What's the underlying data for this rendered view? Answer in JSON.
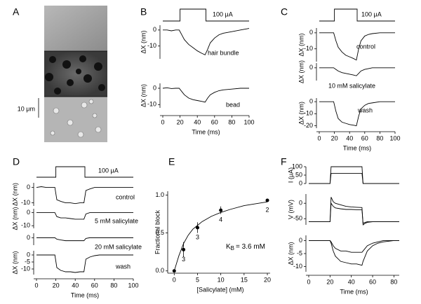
{
  "chart_data": [
    {
      "type": "image",
      "label": "A",
      "scale_bar": "10 μm"
    },
    {
      "type": "line",
      "label": "B",
      "stimulus": {
        "label": "100 μA",
        "start": 20,
        "end": 50
      },
      "ylabel": "ΔX (nm)",
      "annotation": "hair bundle",
      "xlim": [
        0,
        100
      ],
      "ylim": [
        -18,
        3
      ],
      "yticks": [
        0,
        -10
      ],
      "x": [
        0,
        5,
        10,
        15,
        19,
        22,
        25,
        30,
        35,
        40,
        45,
        49,
        52,
        55,
        60,
        65,
        70,
        80,
        90,
        100
      ],
      "series": [
        {
          "color": "#000000",
          "values": [
            0,
            0,
            -0.5,
            0,
            0,
            -3,
            -6,
            -9,
            -11,
            -13,
            -14.5,
            -15.5,
            -12,
            -8,
            -5,
            -3,
            -2,
            -1,
            0,
            1
          ]
        }
      ]
    },
    {
      "type": "line",
      "ylabel": "ΔX (nm)",
      "annotation": "bead",
      "xlabel": "Time (ms)",
      "xlim": [
        0,
        100
      ],
      "ylim": [
        -12,
        3
      ],
      "yticks": [
        0,
        -10
      ],
      "xticks": [
        0,
        20,
        40,
        60,
        80,
        100
      ],
      "x": [
        0,
        5,
        10,
        15,
        19,
        22,
        25,
        30,
        35,
        40,
        45,
        49,
        52,
        55,
        60,
        65,
        70,
        80,
        90,
        100
      ],
      "series": [
        {
          "color": "#000000",
          "values": [
            0,
            0.3,
            -0.2,
            0,
            0,
            -2,
            -4,
            -6,
            -7,
            -7.5,
            -8,
            -8.5,
            -6,
            -4,
            -2.5,
            -1.5,
            -1,
            -0.5,
            0,
            0
          ]
        }
      ]
    },
    {
      "type": "line",
      "label": "C",
      "stimulus": {
        "label": "100 μA",
        "start": 20,
        "end": 50
      },
      "ylabel": "ΔX (nm)",
      "annotation": "control",
      "xlim": [
        0,
        100
      ],
      "ylim": [
        -18,
        3
      ],
      "yticks": [
        0,
        -10
      ],
      "x": [
        0,
        5,
        10,
        15,
        19,
        22,
        25,
        30,
        35,
        40,
        45,
        49,
        52,
        55,
        60,
        65,
        70,
        80,
        90,
        100
      ],
      "series": [
        {
          "color": "#000000",
          "values": [
            0,
            0,
            0,
            0,
            0,
            -5,
            -9,
            -12,
            -14,
            -15,
            -16,
            -17,
            -10,
            -5,
            -2,
            -1,
            -0.5,
            0,
            0,
            0
          ]
        }
      ]
    },
    {
      "type": "line",
      "ylabel": "ΔX (nm)",
      "annotation": "10 mM salicylate",
      "xlim": [
        0,
        100
      ],
      "ylim": [
        -8,
        3
      ],
      "yticks": [
        0
      ],
      "x": [
        0,
        5,
        10,
        15,
        19,
        22,
        25,
        30,
        35,
        40,
        45,
        49,
        52,
        55,
        60,
        65,
        70,
        80,
        90,
        100
      ],
      "series": [
        {
          "color": "#000000",
          "values": [
            0,
            0,
            0,
            0,
            0,
            -1,
            -2,
            -3,
            -3.5,
            -4,
            -4.5,
            -5,
            -3.5,
            -2,
            -1,
            -0.5,
            0,
            0,
            0,
            0
          ]
        }
      ]
    },
    {
      "type": "line",
      "ylabel": "ΔX (nm)",
      "annotation": "wash",
      "xlabel": "Time (ms)",
      "xlim": [
        0,
        100
      ],
      "ylim": [
        -22,
        3
      ],
      "yticks": [
        0,
        -10,
        -20
      ],
      "xticks": [
        0,
        20,
        40,
        60,
        80,
        100
      ],
      "x": [
        0,
        5,
        10,
        15,
        19,
        22,
        25,
        30,
        35,
        40,
        45,
        49,
        52,
        55,
        60,
        65,
        70,
        80,
        90,
        100
      ],
      "series": [
        {
          "color": "#000000",
          "values": [
            0,
            0,
            0,
            0,
            0,
            -8,
            -14,
            -17,
            -18,
            -19,
            -19.5,
            -20,
            -12,
            -6,
            -3,
            -1.5,
            -1,
            0,
            0,
            0
          ]
        }
      ]
    },
    {
      "type": "line",
      "label": "D",
      "stimulus": {
        "label": "100 μA",
        "start": 20,
        "end": 50
      },
      "ylabel": "ΔX (nm)",
      "annotation": "control",
      "xlim": [
        0,
        100
      ],
      "ylim": [
        -12,
        3
      ],
      "yticks": [
        0,
        -10
      ],
      "x": [
        0,
        5,
        10,
        15,
        19,
        21,
        25,
        30,
        35,
        40,
        45,
        49,
        51,
        55,
        60,
        65,
        70,
        80,
        90,
        100
      ],
      "series": [
        {
          "color": "#000000",
          "values": [
            0,
            0.5,
            0,
            0,
            0,
            -8,
            -9,
            -10,
            -10,
            -10.5,
            -10,
            -10,
            -2,
            -1,
            0,
            0,
            0,
            0,
            0,
            0
          ]
        }
      ]
    },
    {
      "type": "line",
      "ylabel": "ΔX (nm)",
      "annotation": "5 mM salicylate",
      "xlim": [
        0,
        100
      ],
      "ylim": [
        -12,
        3
      ],
      "yticks": [
        0,
        -10
      ],
      "x": [
        0,
        5,
        10,
        15,
        19,
        21,
        25,
        30,
        35,
        40,
        45,
        49,
        51,
        55,
        60,
        65,
        70,
        80,
        90,
        100
      ],
      "series": [
        {
          "color": "#000000",
          "values": [
            0,
            0,
            0,
            0,
            0,
            -3,
            -4,
            -4,
            -4.5,
            -5,
            -5,
            -5,
            -1,
            0,
            0,
            0,
            0,
            0,
            0,
            0
          ]
        }
      ]
    },
    {
      "type": "line",
      "annotation": "20 mM salicylate",
      "xlim": [
        0,
        100
      ],
      "ylim": [
        -5,
        3
      ],
      "yticks": [
        0
      ],
      "x": [
        0,
        5,
        10,
        15,
        19,
        21,
        25,
        30,
        35,
        40,
        45,
        49,
        51,
        55,
        60,
        65,
        70,
        80,
        90,
        100
      ],
      "series": [
        {
          "color": "#000000",
          "values": [
            0,
            0,
            0,
            0,
            0,
            -1,
            -1.5,
            -2,
            -2,
            -2,
            -2,
            -2,
            -0.5,
            0,
            0,
            0,
            0,
            0,
            0,
            0
          ]
        }
      ]
    },
    {
      "type": "line",
      "ylabel": "ΔX (nm)",
      "annotation": "wash",
      "xlabel": "Time (ms)",
      "xlim": [
        0,
        100
      ],
      "ylim": [
        -14,
        3
      ],
      "yticks": [
        0,
        -5,
        -10
      ],
      "xticks": [
        0,
        20,
        40,
        60,
        80,
        100
      ],
      "x": [
        0,
        5,
        10,
        15,
        19,
        21,
        25,
        30,
        35,
        40,
        45,
        49,
        51,
        55,
        60,
        65,
        70,
        80,
        90,
        100
      ],
      "series": [
        {
          "color": "#000000",
          "values": [
            0,
            0,
            0,
            0,
            0,
            -9,
            -11,
            -12,
            -12,
            -12.5,
            -12,
            -12,
            -3,
            -1.5,
            -0.5,
            0,
            0,
            0,
            0,
            0
          ]
        }
      ]
    },
    {
      "type": "scatter",
      "label": "E",
      "ylabel": "Fractional block",
      "xlabel": "[Salicylate] (mM)",
      "kb_symbol": "K",
      "kb_subscript": "B",
      "kb_text": "= 3.6 mM",
      "xlim": [
        -0.8,
        20.6
      ],
      "ylim": [
        -0.03,
        1.05
      ],
      "xticks": [
        0,
        5,
        10,
        15,
        20
      ],
      "yticks": [
        {
          "value": 0,
          "label": "0.0"
        },
        0.5,
        {
          "value": 1,
          "label": "1.0"
        }
      ],
      "points": {
        "x": [
          0,
          2,
          5,
          10,
          20
        ],
        "values": [
          0,
          0.28,
          0.57,
          0.8,
          0.93
        ],
        "errors": [
          0,
          0.1,
          0.07,
          0.05,
          0
        ],
        "n_labels": [
          null,
          "3",
          "3",
          "4",
          "2"
        ],
        "color": "#000000"
      },
      "fit": {
        "x": [
          0,
          1,
          2,
          3,
          4,
          5,
          6,
          8,
          10,
          12,
          15,
          20
        ],
        "values": [
          0,
          0.2,
          0.36,
          0.47,
          0.55,
          0.6,
          0.65,
          0.72,
          0.77,
          0.81,
          0.86,
          0.91
        ],
        "color": "#000000"
      }
    },
    {
      "type": "line",
      "label": "F",
      "ylabel": "I (μA)",
      "xlim": [
        0,
        85
      ],
      "ylim": [
        0,
        100
      ],
      "yticks": [
        0,
        50,
        100
      ],
      "x": [
        0,
        10,
        20,
        21,
        23,
        25,
        30,
        35,
        40,
        45,
        50,
        51,
        53,
        55,
        60,
        65,
        70,
        80,
        85
      ],
      "series": [
        {
          "color": "#000000",
          "values": [
            0,
            0,
            0,
            100,
            100,
            100,
            100,
            100,
            100,
            100,
            100,
            0,
            0,
            0,
            0,
            0,
            0,
            0,
            0
          ]
        },
        {
          "color": "#000000",
          "values": [
            0,
            0,
            0,
            60,
            60,
            60,
            60,
            60,
            60,
            60,
            60,
            0,
            0,
            0,
            0,
            0,
            0,
            0,
            0
          ]
        }
      ]
    },
    {
      "type": "line",
      "ylabel": "V (mV)",
      "xlim": [
        0,
        85
      ],
      "ylim": [
        -70,
        30
      ],
      "yticks": [
        0,
        -50
      ],
      "x": [
        0,
        10,
        20,
        21,
        23,
        25,
        30,
        35,
        40,
        45,
        50,
        51,
        53,
        55,
        60,
        65,
        70,
        80,
        85
      ],
      "series": [
        {
          "color": "#000000",
          "values": [
            -60,
            -60,
            -60,
            20,
            5,
            0,
            -5,
            -10,
            -12,
            -13,
            -14,
            -70,
            -65,
            -62,
            -60,
            -60,
            -60,
            -60,
            -60
          ]
        },
        {
          "color": "#000000",
          "values": [
            -60,
            -60,
            -60,
            0,
            -10,
            -15,
            -18,
            -20,
            -20,
            -21,
            -21,
            -65,
            -62,
            -60,
            -60,
            -60,
            -60,
            -60,
            -60
          ]
        }
      ]
    },
    {
      "type": "line",
      "ylabel": "ΔX (nm)",
      "xlabel": "Time (ms)",
      "xlim": [
        0,
        85
      ],
      "ylim": [
        -12,
        2
      ],
      "yticks": [
        0,
        -5,
        -10
      ],
      "xticks": [
        0,
        20,
        40,
        60,
        80
      ],
      "x": [
        0,
        10,
        20,
        21,
        23,
        25,
        30,
        35,
        40,
        45,
        50,
        51,
        53,
        55,
        60,
        65,
        70,
        80,
        85
      ],
      "series": [
        {
          "color": "#000000",
          "values": [
            0,
            0,
            0,
            -1,
            -4,
            -6,
            -8,
            -8.5,
            -9,
            -9,
            -9.5,
            -8,
            -6,
            -4,
            -2,
            -1,
            -0.5,
            0,
            0
          ]
        },
        {
          "color": "#000000",
          "values": [
            0,
            0,
            0,
            -0.5,
            -2,
            -3,
            -4,
            -4,
            -4.5,
            -4.5,
            -4.5,
            -4,
            -3,
            -2,
            -1,
            -0.5,
            0,
            0,
            0
          ]
        }
      ]
    }
  ]
}
